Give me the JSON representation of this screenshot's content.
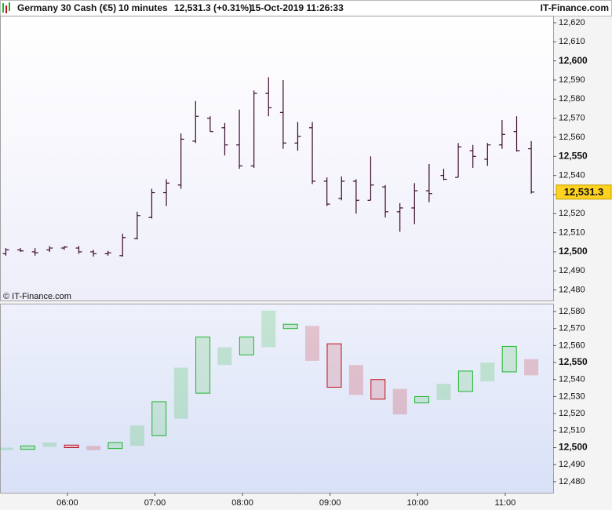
{
  "header": {
    "instrument": "Germany 30 Cash (€5)",
    "interval": "10 minutes",
    "quote": "12,531.3 (+0.31%)",
    "timestamp": "15-Oct-2019 11:26:33",
    "brand": "IT-Finance.com",
    "watermark": "© IT-Finance.com"
  },
  "chart_data": [
    {
      "type": "ohlc",
      "color": "#3a0a2a",
      "x": [
        "05:20",
        "05:30",
        "05:40",
        "05:50",
        "06:00",
        "06:10",
        "06:20",
        "06:30",
        "06:40",
        "06:50",
        "07:00",
        "07:10",
        "07:20",
        "07:30",
        "07:40",
        "07:50",
        "08:00",
        "08:10",
        "08:20",
        "08:30",
        "08:40",
        "08:50",
        "09:00",
        "09:10",
        "09:20",
        "09:30",
        "09:40",
        "09:50",
        "10:00",
        "10:10",
        "10:20",
        "10:30",
        "10:40",
        "10:50",
        "11:00",
        "11:10",
        "11:20"
      ],
      "open": [
        12499,
        12501,
        12500,
        12501,
        12502,
        12502,
        12500,
        12499,
        12498,
        12507,
        12518,
        12531,
        12535,
        12558,
        12570,
        12565,
        12556,
        12545,
        12583,
        12573,
        12557,
        12565,
        12537,
        12528,
        12537,
        12527,
        12534,
        12521,
        12523,
        12532,
        12540,
        12539,
        12553,
        12548.5,
        12556,
        12563,
        12554
      ],
      "high": [
        12502,
        12502,
        12502,
        12503,
        12503,
        12503,
        12501,
        12500.5,
        12509.5,
        12521,
        12533,
        12538,
        12562,
        12579,
        12571,
        12567.5,
        12574.5,
        12584.5,
        12591.5,
        12590,
        12568,
        12568,
        12539,
        12539.5,
        12538,
        12550,
        12535,
        12525.5,
        12536,
        12546,
        12543.5,
        12557,
        12556,
        12557,
        12569,
        12571,
        12558
      ],
      "low": [
        12498,
        12500,
        12498,
        12500,
        12501,
        12499,
        12497.5,
        12498,
        12497.5,
        12506.5,
        12517.5,
        12524,
        12533,
        12557,
        12563,
        12550.5,
        12543.5,
        12544,
        12571,
        12554,
        12553,
        12535.5,
        12524,
        12527,
        12520,
        12527,
        12518,
        12510.5,
        12514.5,
        12526,
        12537.5,
        12539,
        12544,
        12545,
        12554,
        12552.5,
        12530.5
      ],
      "close": [
        12501,
        12500.5,
        12499.5,
        12502,
        12502.5,
        12500,
        12499,
        12499.5,
        12507.5,
        12519,
        12531,
        12536,
        12559,
        12571,
        12563,
        12556,
        12545,
        12583,
        12575.5,
        12557,
        12560.5,
        12537,
        12525,
        12537,
        12527,
        12535,
        12521,
        12523,
        12532,
        12530.5,
        12538,
        12555,
        12550,
        12556,
        12561.5,
        12553,
        12531.3
      ],
      "last_price_label": "12,531.3",
      "xlim": [
        "05:16",
        "11:35"
      ],
      "ylim": [
        12474.5,
        12623.7
      ],
      "yticks": [
        {
          "value": 12480,
          "label": "12,480"
        },
        {
          "value": 12490,
          "label": "12,490"
        },
        {
          "value": 12500,
          "label": "12,500"
        },
        {
          "value": 12510,
          "label": "12,510"
        },
        {
          "value": 12520,
          "label": "12,520"
        },
        {
          "value": 12530,
          "label": "12,530"
        },
        {
          "value": 12540,
          "label": "12,540"
        },
        {
          "value": 12550,
          "label": "12,550"
        },
        {
          "value": 12560,
          "label": "12,560"
        },
        {
          "value": 12570,
          "label": "12,570"
        },
        {
          "value": 12580,
          "label": "12,580"
        },
        {
          "value": 12590,
          "label": "12,590"
        },
        {
          "value": 12600,
          "label": "12,600"
        },
        {
          "value": 12610,
          "label": "12,610"
        },
        {
          "value": 12620,
          "label": "12,620"
        }
      ]
    },
    {
      "type": "box",
      "up_color": "#1fb52b",
      "down_color": "#c0101a",
      "x": [
        "05:20",
        "05:35",
        "05:50",
        "06:05",
        "06:20",
        "06:35",
        "06:50",
        "07:05",
        "07:20",
        "07:35",
        "07:50",
        "08:05",
        "08:20",
        "08:35",
        "08:50",
        "09:05",
        "09:20",
        "09:35",
        "09:50",
        "10:05",
        "10:20",
        "10:35",
        "10:50",
        "11:05",
        "11:20"
      ],
      "open": [
        12498.5,
        12499,
        12500.5,
        12501.5,
        12501,
        12499.5,
        12501,
        12507,
        12517,
        12532,
        12548.5,
        12554.5,
        12559,
        12570,
        12571.5,
        12561,
        12548.5,
        12540,
        12534.5,
        12526.3,
        12528,
        12533,
        12539,
        12544.5,
        12552
      ],
      "close": [
        12500,
        12501,
        12503,
        12500,
        12498.5,
        12503,
        12513,
        12527,
        12547,
        12565,
        12559,
        12565,
        12580.5,
        12572.5,
        12551,
        12535.5,
        12531,
        12528.5,
        12519.5,
        12530,
        12537.5,
        12545,
        12550,
        12559.5,
        12542.5
      ],
      "xlim": [
        "05:16",
        "11:35"
      ],
      "ylim": [
        12473.5,
        12584.6
      ],
      "xticks": [
        "06:00",
        "07:00",
        "08:00",
        "09:00",
        "10:00",
        "11:00"
      ],
      "yticks": [
        {
          "value": 12480,
          "label": "12,480"
        },
        {
          "value": 12490,
          "label": "12,490"
        },
        {
          "value": 12500,
          "label": "12,500"
        },
        {
          "value": 12510,
          "label": "12,510"
        },
        {
          "value": 12520,
          "label": "12,520"
        },
        {
          "value": 12530,
          "label": "12,530"
        },
        {
          "value": 12540,
          "label": "12,540"
        },
        {
          "value": 12550,
          "label": "12,550"
        },
        {
          "value": 12560,
          "label": "12,560"
        },
        {
          "value": 12570,
          "label": "12,570"
        },
        {
          "value": 12580,
          "label": "12,580"
        }
      ]
    }
  ]
}
